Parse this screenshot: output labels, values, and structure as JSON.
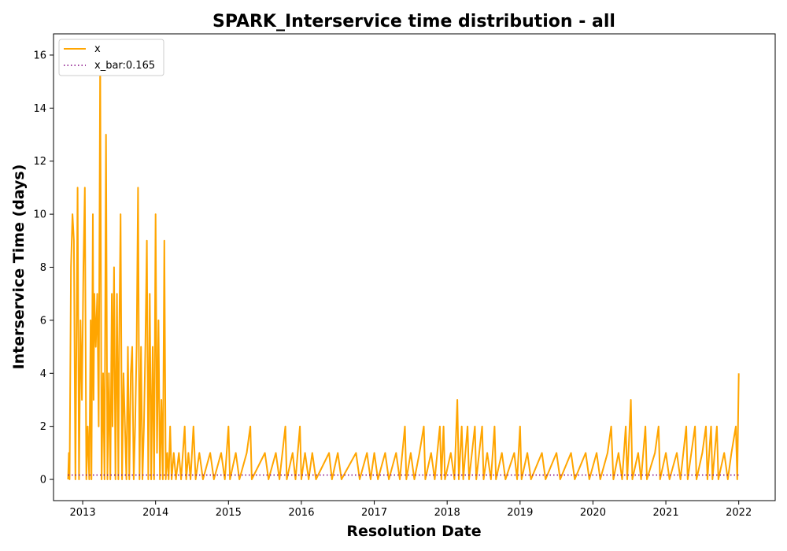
{
  "chart_data": {
    "type": "line",
    "title": "SPARK_Interservice time distribution - all",
    "xlabel": "Resolution Date",
    "ylabel": "Interservice Time (days)",
    "xlim": [
      2012.6,
      2022.5
    ],
    "ylim": [
      -0.8,
      16.8
    ],
    "x_ticks": [
      "2013",
      "2014",
      "2015",
      "2016",
      "2017",
      "2018",
      "2019",
      "2020",
      "2021",
      "2022"
    ],
    "y_ticks": [
      "0",
      "2",
      "4",
      "6",
      "8",
      "10",
      "12",
      "14",
      "16"
    ],
    "grid": false,
    "legend_position": "top-left",
    "series": [
      {
        "name": "x",
        "style": "solid",
        "color": "#ffa500",
        "points": [
          [
            2012.8,
            0
          ],
          [
            2012.81,
            1
          ],
          [
            2012.82,
            0
          ],
          [
            2012.84,
            8
          ],
          [
            2012.86,
            10
          ],
          [
            2012.88,
            9
          ],
          [
            2012.9,
            0
          ],
          [
            2012.93,
            11
          ],
          [
            2012.95,
            0
          ],
          [
            2012.97,
            6
          ],
          [
            2012.99,
            3
          ],
          [
            2013.01,
            8
          ],
          [
            2013.03,
            11
          ],
          [
            2013.05,
            0
          ],
          [
            2013.07,
            2
          ],
          [
            2013.09,
            0
          ],
          [
            2013.11,
            6
          ],
          [
            2013.12,
            0
          ],
          [
            2013.14,
            10
          ],
          [
            2013.15,
            3
          ],
          [
            2013.16,
            7
          ],
          [
            2013.18,
            5
          ],
          [
            2013.2,
            7
          ],
          [
            2013.22,
            2
          ],
          [
            2013.24,
            16
          ],
          [
            2013.26,
            0
          ],
          [
            2013.28,
            4
          ],
          [
            2013.3,
            0
          ],
          [
            2013.32,
            13
          ],
          [
            2013.34,
            0
          ],
          [
            2013.36,
            4
          ],
          [
            2013.38,
            0
          ],
          [
            2013.4,
            7
          ],
          [
            2013.41,
            2
          ],
          [
            2013.43,
            8
          ],
          [
            2013.45,
            0
          ],
          [
            2013.47,
            7
          ],
          [
            2013.49,
            0
          ],
          [
            2013.5,
            5
          ],
          [
            2013.52,
            10
          ],
          [
            2013.54,
            0
          ],
          [
            2013.56,
            4
          ],
          [
            2013.58,
            2
          ],
          [
            2013.6,
            0
          ],
          [
            2013.62,
            5
          ],
          [
            2013.64,
            0
          ],
          [
            2013.66,
            4
          ],
          [
            2013.68,
            5
          ],
          [
            2013.7,
            0
          ],
          [
            2013.72,
            2
          ],
          [
            2013.74,
            5
          ],
          [
            2013.76,
            11
          ],
          [
            2013.78,
            0
          ],
          [
            2013.8,
            5
          ],
          [
            2013.82,
            0
          ],
          [
            2013.84,
            2
          ],
          [
            2013.86,
            5
          ],
          [
            2013.88,
            9
          ],
          [
            2013.9,
            0
          ],
          [
            2013.92,
            7
          ],
          [
            2013.94,
            0
          ],
          [
            2013.96,
            5
          ],
          [
            2013.98,
            0
          ],
          [
            2014.0,
            10
          ],
          [
            2014.02,
            1
          ],
          [
            2014.04,
            6
          ],
          [
            2014.06,
            0
          ],
          [
            2014.08,
            3
          ],
          [
            2014.1,
            0
          ],
          [
            2014.12,
            9
          ],
          [
            2014.14,
            0
          ],
          [
            2014.16,
            1
          ],
          [
            2014.18,
            0
          ],
          [
            2014.2,
            2
          ],
          [
            2014.22,
            0
          ],
          [
            2014.25,
            1
          ],
          [
            2014.28,
            0
          ],
          [
            2014.32,
            1
          ],
          [
            2014.35,
            0
          ],
          [
            2014.4,
            2
          ],
          [
            2014.42,
            0
          ],
          [
            2014.45,
            1
          ],
          [
            2014.48,
            0
          ],
          [
            2014.52,
            2
          ],
          [
            2014.55,
            0
          ],
          [
            2014.6,
            1
          ],
          [
            2014.65,
            0
          ],
          [
            2014.75,
            1
          ],
          [
            2014.8,
            0
          ],
          [
            2014.9,
            1
          ],
          [
            2014.95,
            0
          ],
          [
            2015.0,
            2
          ],
          [
            2015.02,
            0
          ],
          [
            2015.1,
            1
          ],
          [
            2015.15,
            0
          ],
          [
            2015.25,
            1
          ],
          [
            2015.3,
            2
          ],
          [
            2015.32,
            0
          ],
          [
            2015.5,
            1
          ],
          [
            2015.55,
            0
          ],
          [
            2015.65,
            1
          ],
          [
            2015.7,
            0
          ],
          [
            2015.78,
            2
          ],
          [
            2015.8,
            0
          ],
          [
            2015.88,
            1
          ],
          [
            2015.92,
            0
          ],
          [
            2015.98,
            2
          ],
          [
            2016.0,
            0
          ],
          [
            2016.05,
            1
          ],
          [
            2016.1,
            0
          ],
          [
            2016.15,
            1
          ],
          [
            2016.2,
            0
          ],
          [
            2016.38,
            1
          ],
          [
            2016.42,
            0
          ],
          [
            2016.5,
            1
          ],
          [
            2016.55,
            0
          ],
          [
            2016.75,
            1
          ],
          [
            2016.8,
            0
          ],
          [
            2016.9,
            1
          ],
          [
            2016.95,
            0
          ],
          [
            2017.0,
            1
          ],
          [
            2017.05,
            0
          ],
          [
            2017.15,
            1
          ],
          [
            2017.2,
            0
          ],
          [
            2017.3,
            1
          ],
          [
            2017.35,
            0
          ],
          [
            2017.42,
            2
          ],
          [
            2017.44,
            0
          ],
          [
            2017.5,
            1
          ],
          [
            2017.55,
            0
          ],
          [
            2017.62,
            1
          ],
          [
            2017.68,
            2
          ],
          [
            2017.7,
            0
          ],
          [
            2017.78,
            1
          ],
          [
            2017.83,
            0
          ],
          [
            2017.9,
            2
          ],
          [
            2017.92,
            0
          ],
          [
            2017.95,
            2
          ],
          [
            2017.97,
            0
          ],
          [
            2018.05,
            1
          ],
          [
            2018.1,
            0
          ],
          [
            2018.14,
            3
          ],
          [
            2018.16,
            0
          ],
          [
            2018.2,
            2
          ],
          [
            2018.22,
            0
          ],
          [
            2018.28,
            2
          ],
          [
            2018.3,
            0
          ],
          [
            2018.38,
            2
          ],
          [
            2018.4,
            0
          ],
          [
            2018.48,
            2
          ],
          [
            2018.5,
            0
          ],
          [
            2018.55,
            1
          ],
          [
            2018.6,
            0
          ],
          [
            2018.65,
            2
          ],
          [
            2018.67,
            0
          ],
          [
            2018.75,
            1
          ],
          [
            2018.8,
            0
          ],
          [
            2018.92,
            1
          ],
          [
            2018.96,
            0
          ],
          [
            2019.0,
            2
          ],
          [
            2019.02,
            0
          ],
          [
            2019.1,
            1
          ],
          [
            2019.15,
            0
          ],
          [
            2019.3,
            1
          ],
          [
            2019.35,
            0
          ],
          [
            2019.5,
            1
          ],
          [
            2019.55,
            0
          ],
          [
            2019.7,
            1
          ],
          [
            2019.75,
            0
          ],
          [
            2019.9,
            1
          ],
          [
            2019.95,
            0
          ],
          [
            2020.05,
            1
          ],
          [
            2020.1,
            0
          ],
          [
            2020.2,
            1
          ],
          [
            2020.25,
            2
          ],
          [
            2020.28,
            0
          ],
          [
            2020.35,
            1
          ],
          [
            2020.4,
            0
          ],
          [
            2020.45,
            2
          ],
          [
            2020.47,
            0
          ],
          [
            2020.52,
            3
          ],
          [
            2020.54,
            0
          ],
          [
            2020.62,
            1
          ],
          [
            2020.66,
            0
          ],
          [
            2020.72,
            2
          ],
          [
            2020.74,
            0
          ],
          [
            2020.85,
            1
          ],
          [
            2020.9,
            2
          ],
          [
            2020.92,
            0
          ],
          [
            2021.0,
            1
          ],
          [
            2021.05,
            0
          ],
          [
            2021.15,
            1
          ],
          [
            2021.2,
            0
          ],
          [
            2021.28,
            2
          ],
          [
            2021.3,
            0
          ],
          [
            2021.4,
            2
          ],
          [
            2021.42,
            0
          ],
          [
            2021.5,
            1
          ],
          [
            2021.55,
            2
          ],
          [
            2021.57,
            0
          ],
          [
            2021.62,
            2
          ],
          [
            2021.64,
            0
          ],
          [
            2021.7,
            2
          ],
          [
            2021.72,
            0
          ],
          [
            2021.8,
            1
          ],
          [
            2021.85,
            0
          ],
          [
            2021.9,
            1
          ],
          [
            2021.96,
            2
          ],
          [
            2021.98,
            0
          ],
          [
            2022.0,
            4
          ]
        ]
      },
      {
        "name": "x_bar:0.165",
        "style": "dotted",
        "color": "#800080",
        "points": [
          [
            2012.8,
            0.165
          ],
          [
            2022.0,
            0.165
          ]
        ]
      }
    ]
  }
}
